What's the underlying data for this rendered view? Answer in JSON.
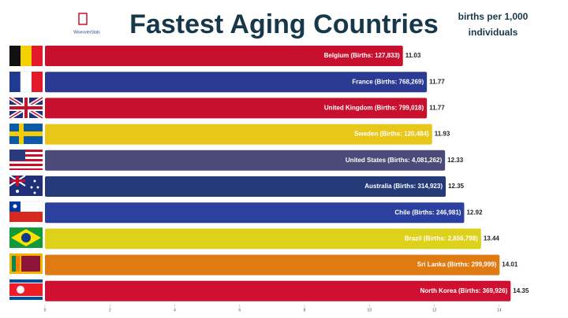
{
  "chart_data": {
    "type": "bar",
    "orientation": "horizontal",
    "title": "Fastest Aging Countries",
    "subtitle_lines": [
      "births per 1,000",
      "individuals"
    ],
    "logo_text": "WisevoterStats",
    "categories": [
      "Belgium (Births: 127,833)",
      "France (Births: 768,269)",
      "United Kingdom (Births: 799,018)",
      "Sweden (Births: 120,484)",
      "United States (Births: 4,081,262)",
      "Australia (Births: 314,923)",
      "Chile (Births: 246,981)",
      "Brazil (Births: 2,856,798)",
      "Sri Lanka (Births: 299,999)",
      "North Korea (Births: 369,926)"
    ],
    "values": [
      11.03,
      11.77,
      11.77,
      11.93,
      12.33,
      12.35,
      12.92,
      13.44,
      14.01,
      14.35
    ],
    "colors": [
      "#c8102e",
      "#2b3a92",
      "#c8102e",
      "#e8c61a",
      "#4c4a78",
      "#253a78",
      "#2c40a0",
      "#ddd11c",
      "#e07a12",
      "#cf1030"
    ],
    "xlim": [
      0,
      15
    ],
    "xticks": [
      0,
      2,
      4,
      6,
      8,
      10,
      12,
      14
    ]
  }
}
